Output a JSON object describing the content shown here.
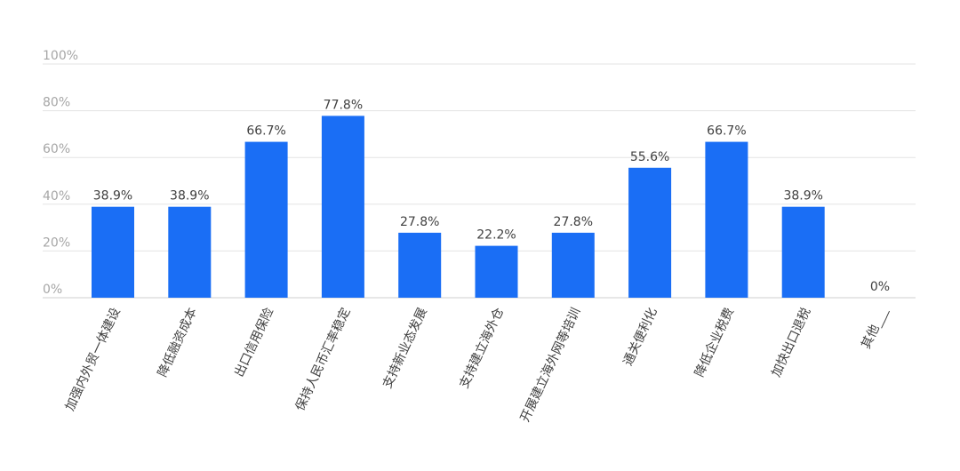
{
  "chart_data": {
    "type": "bar",
    "categories": [
      "加强内外贸一体建设",
      "降低融资成本",
      "出口信用保险",
      "保持人民币汇率稳定",
      "支持新业态发展",
      "支持建立海外仓",
      "开展建立海外网等培训",
      "通关便利化",
      "降低企业税费",
      "加快出口退税",
      "其他___"
    ],
    "values": [
      38.9,
      38.9,
      66.7,
      77.8,
      27.8,
      22.2,
      27.8,
      55.6,
      66.7,
      38.9,
      0
    ],
    "data_labels": [
      "38.9%",
      "38.9%",
      "66.7%",
      "77.8%",
      "27.8%",
      "22.2%",
      "27.8%",
      "55.6%",
      "66.7%",
      "38.9%",
      "0%"
    ],
    "yticks": [
      0,
      20,
      40,
      60,
      80,
      100
    ],
    "ytick_labels": [
      "0%",
      "20%",
      "40%",
      "60%",
      "80%",
      "100%"
    ],
    "ylim": [
      0,
      100
    ],
    "grid": true,
    "bar_color": "#1a6ef5"
  }
}
